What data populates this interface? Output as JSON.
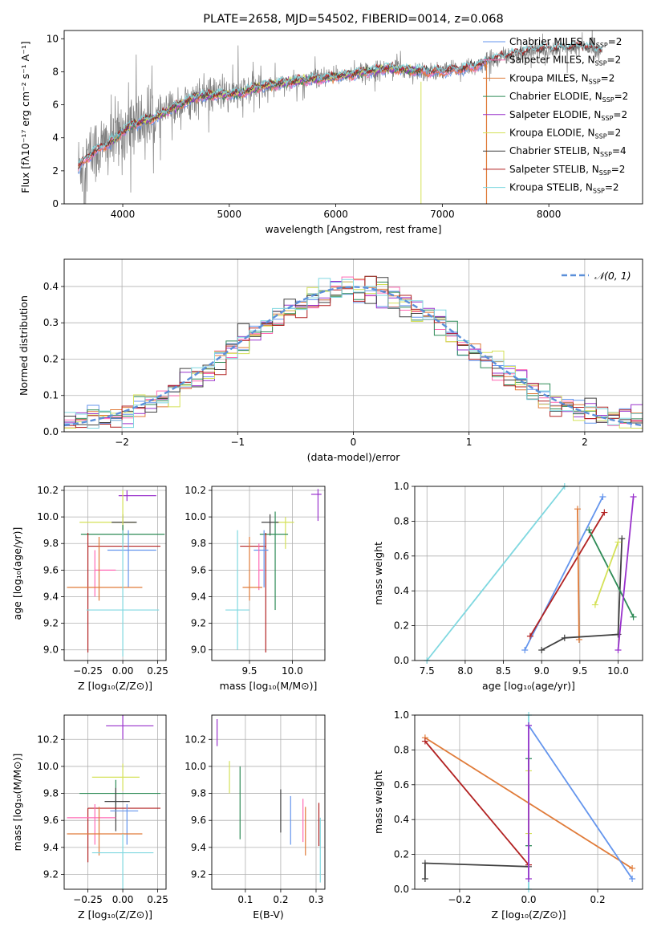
{
  "chart_data": [
    {
      "id": "spectrum",
      "type": "line",
      "title": "PLATE=2658, MJD=54502, FIBERID=0014, z=0.068",
      "xlabel": "wavelength [Angstrom, rest frame]",
      "ylabel": "Flux [fλ10⁻¹⁷ erg cm⁻² s⁻¹ A⁻¹]",
      "xlim": [
        3450,
        8880
      ],
      "ylim": [
        0,
        10.5
      ],
      "xticks": [
        4000,
        5000,
        6000,
        7000,
        8000
      ],
      "yticks": [
        0,
        2,
        4,
        6,
        8,
        10
      ],
      "legend_position": "top-right",
      "data_color": "#808080",
      "data_range": [
        3580,
        8500
      ],
      "continuum": {
        "x": [
          3580,
          3700,
          3800,
          3900,
          4000,
          4100,
          4200,
          4300,
          4500,
          4700,
          4900,
          5100,
          5300,
          5500,
          5700,
          5900,
          6100,
          6300,
          6500,
          6700,
          6900,
          7100,
          7300,
          7500,
          7700,
          7900,
          8100,
          8300,
          8500
        ],
        "y": [
          2.2,
          3.0,
          3.4,
          3.8,
          4.4,
          4.8,
          5.0,
          5.2,
          5.9,
          6.5,
          6.6,
          6.7,
          7.1,
          7.3,
          7.5,
          7.6,
          7.8,
          8.0,
          8.2,
          8.1,
          8.0,
          8.1,
          8.3,
          8.8,
          9.1,
          9.3,
          9.4,
          9.5,
          9.3
        ]
      },
      "series": [
        {
          "name": "Chabrier MILES, N_SSP=2",
          "color": "#6495ed",
          "range": [
            3580,
            7420
          ]
        },
        {
          "name": "Salpeter MILES, N_SSP=2",
          "color": "#ff69b4",
          "range": [
            3580,
            7420
          ]
        },
        {
          "name": "Kroupa MILES, N_SSP=2",
          "color": "#e07b39",
          "range": [
            3580,
            7420
          ]
        },
        {
          "name": "Chabrier ELODIE, N_SSP=2",
          "color": "#2e8b57",
          "range": [
            3900,
            6800
          ]
        },
        {
          "name": "Salpeter ELODIE, N_SSP=2",
          "color": "#9932cc",
          "range": [
            3900,
            6800
          ]
        },
        {
          "name": "Kroupa ELODIE, N_SSP=2",
          "color": "#d4e157",
          "range": [
            3900,
            6800
          ]
        },
        {
          "name": "Chabrier STELIB, N_SSP=4",
          "color": "#404040",
          "range": [
            3580,
            8500
          ]
        },
        {
          "name": "Salpeter STELIB, N_SSP=2",
          "color": "#b22222",
          "range": [
            3580,
            8500
          ]
        },
        {
          "name": "Kroupa STELIB, N_SSP=2",
          "color": "#80d8e0",
          "range": [
            3580,
            8500
          ]
        }
      ]
    },
    {
      "id": "residuals",
      "type": "histogram",
      "title": "",
      "xlabel": "(data-model)/error",
      "ylabel": "Normed distribution",
      "xlim": [
        -2.5,
        2.5
      ],
      "ylim": [
        0,
        0.475
      ],
      "xticks": [
        -2,
        -1,
        0,
        1,
        2
      ],
      "xtick_labels": [
        "−2",
        "−1",
        "0",
        "1",
        "2"
      ],
      "yticks": [
        0.0,
        0.1,
        0.2,
        0.3,
        0.4
      ],
      "ytick_labels": [
        "0.0",
        "0.1",
        "0.2",
        "0.3",
        "0.4"
      ],
      "bin_width": 0.1,
      "grid": true,
      "legend_position": "top-right",
      "reference": {
        "name": "𝒩(0, 1)",
        "color": "#5b8fd9",
        "mean": 0,
        "sigma": 1
      }
    },
    {
      "id": "age_vs_z",
      "type": "errorbar",
      "xlabel": "Z [log₁₀(Z/Z⊙)]",
      "ylabel": "age  [log₁₀(age/yr)]",
      "xlim": [
        -0.42,
        0.31
      ],
      "ylim": [
        8.92,
        10.23
      ],
      "xticks": [
        -0.25,
        0.0,
        0.25
      ],
      "xtick_labels": [
        "−0.25",
        "0.00",
        "0.25"
      ],
      "yticks": [
        9.0,
        9.2,
        9.4,
        9.6,
        9.8,
        10.0,
        10.2
      ],
      "ytick_labels": [
        "9.0",
        "9.2",
        "9.4",
        "9.6",
        "9.8",
        "10.0",
        "10.2"
      ],
      "grid": true,
      "points": [
        {
          "color": "#9932cc",
          "x": 0.03,
          "xerr": [
            0.06,
            0.21
          ],
          "y": 10.16,
          "yerr": [
            0.04,
            0.04
          ]
        },
        {
          "color": "#d4e157",
          "x": -0.05,
          "xerr": [
            0.26,
            0.14
          ],
          "y": 9.96,
          "yerr": [
            0.0,
            0.0
          ]
        },
        {
          "color": "#404040",
          "x": 0.0,
          "xerr": [
            0.08,
            0.1
          ],
          "y": 9.96,
          "yerr": [
            0.1,
            0.06
          ]
        },
        {
          "color": "#d4e157",
          "x": 0.0,
          "xerr": [
            0.0,
            0.0
          ],
          "y": 10.0,
          "yerr": [
            0.2,
            0.2
          ]
        },
        {
          "color": "#2e8b57",
          "x": -0.04,
          "xerr": [
            0.26,
            0.34
          ],
          "y": 9.87,
          "yerr": [
            0.0,
            0.0
          ]
        },
        {
          "color": "#2e8b57",
          "x": 0.0,
          "xerr": [
            0.0,
            0.0
          ],
          "y": 9.87,
          "yerr": [
            0.07,
            0.07
          ]
        },
        {
          "color": "#b22222",
          "x": -0.25,
          "xerr": [
            0.0,
            0.52
          ],
          "y": 9.78,
          "yerr": [
            0.8,
            0.1
          ]
        },
        {
          "color": "#6495ed",
          "x": 0.04,
          "xerr": [
            0.15,
            0.2
          ],
          "y": 9.75,
          "yerr": [
            0.28,
            0.15
          ]
        },
        {
          "color": "#ff69b4",
          "x": -0.2,
          "xerr": [
            0.0,
            0.15
          ],
          "y": 9.6,
          "yerr": [
            0.2,
            0.15
          ]
        },
        {
          "color": "#e07b39",
          "x": -0.17,
          "xerr": [
            0.23,
            0.31
          ],
          "y": 9.47,
          "yerr": [
            0.1,
            0.38
          ]
        },
        {
          "color": "#80d8e0",
          "x": 0.0,
          "xerr": [
            0.26,
            0.26
          ],
          "y": 9.3,
          "yerr": [
            0.35,
            0.6
          ]
        }
      ]
    },
    {
      "id": "age_vs_mass",
      "type": "errorbar",
      "xlabel": "mass [log₁₀(M/M⊙)]",
      "ylabel": "",
      "xlim": [
        9.06,
        10.38
      ],
      "ylim": [
        8.92,
        10.23
      ],
      "xticks": [
        9.5,
        10.0
      ],
      "xtick_labels": [
        "9.5",
        "10.0"
      ],
      "yticks": [
        9.0,
        9.2,
        9.4,
        9.6,
        9.8,
        10.0,
        10.2
      ],
      "ytick_labels": [
        "9.0",
        "9.2",
        "9.4",
        "9.6",
        "9.8",
        "10.0",
        "10.2"
      ],
      "grid": true,
      "points": [
        {
          "color": "#9932cc",
          "x": 10.3,
          "xerr": [
            0.08,
            0.04
          ],
          "y": 10.17,
          "yerr": [
            0.2,
            0.04
          ]
        },
        {
          "color": "#d4e157",
          "x": 9.92,
          "xerr": [
            0.12,
            0.1
          ],
          "y": 9.96,
          "yerr": [
            0.2,
            0.04
          ]
        },
        {
          "color": "#404040",
          "x": 9.74,
          "xerr": [
            0.1,
            0.1
          ],
          "y": 9.96,
          "yerr": [
            0.1,
            0.06
          ]
        },
        {
          "color": "#2e8b57",
          "x": 9.8,
          "xerr": [
            0.18,
            0.15
          ],
          "y": 9.87,
          "yerr": [
            0.57,
            0.17
          ]
        },
        {
          "color": "#b22222",
          "x": 9.69,
          "xerr": [
            0.3,
            0.0
          ],
          "y": 9.78,
          "yerr": [
            0.8,
            0.1
          ]
        },
        {
          "color": "#6495ed",
          "x": 9.67,
          "xerr": [
            0.12,
            0.05
          ],
          "y": 9.75,
          "yerr": [
            0.28,
            0.15
          ]
        },
        {
          "color": "#ff69b4",
          "x": 9.61,
          "xerr": [
            0.0,
            0.05
          ],
          "y": 9.6,
          "yerr": [
            0.15,
            0.2
          ]
        },
        {
          "color": "#e07b39",
          "x": 9.5,
          "xerr": [
            0.08,
            0.15
          ],
          "y": 9.47,
          "yerr": [
            0.1,
            0.38
          ]
        },
        {
          "color": "#80d8e0",
          "x": 9.36,
          "xerr": [
            0.14,
            0.14
          ],
          "y": 9.3,
          "yerr": [
            0.3,
            0.6
          ]
        }
      ]
    },
    {
      "id": "mass_weight_vs_age",
      "type": "line",
      "xlabel": "age  [log₁₀(age/yr)]",
      "ylabel": "mass weight",
      "xlim": [
        7.34,
        10.32
      ],
      "ylim": [
        0.0,
        1.0
      ],
      "xticks": [
        7.5,
        8.0,
        8.5,
        9.0,
        9.5,
        10.0
      ],
      "xtick_labels": [
        "7.5",
        "8.0",
        "8.5",
        "9.0",
        "9.5",
        "10.0"
      ],
      "yticks": [
        0.0,
        0.2,
        0.4,
        0.6,
        0.8,
        1.0
      ],
      "ytick_labels": [
        "0.0",
        "0.2",
        "0.4",
        "0.6",
        "0.8",
        "1.0"
      ],
      "grid": true,
      "lines": [
        {
          "color": "#80d8e0",
          "x": [
            7.5,
            9.3
          ],
          "y": [
            0.0,
            1.0
          ]
        },
        {
          "color": "#6495ed",
          "x": [
            8.78,
            9.8
          ],
          "y": [
            0.06,
            0.94
          ]
        },
        {
          "color": "#b22222",
          "x": [
            8.85,
            9.82
          ],
          "y": [
            0.14,
            0.85
          ]
        },
        {
          "color": "#e07b39",
          "x": [
            9.47,
            9.49
          ],
          "y": [
            0.87,
            0.12
          ]
        },
        {
          "color": "#404040",
          "x": [
            9.0,
            9.3,
            10.0,
            10.05
          ],
          "y": [
            0.06,
            0.13,
            0.15,
            0.7
          ]
        },
        {
          "color": "#2e8b57",
          "x": [
            9.62,
            10.2
          ],
          "y": [
            0.75,
            0.25
          ]
        },
        {
          "color": "#d4e157",
          "x": [
            9.7,
            10.0
          ],
          "y": [
            0.32,
            0.68
          ]
        },
        {
          "color": "#9932cc",
          "x": [
            10.0,
            10.2
          ],
          "y": [
            0.06,
            0.94
          ]
        }
      ]
    },
    {
      "id": "mass_vs_z",
      "type": "errorbar",
      "xlabel": "Z [log₁₀(Z/Z⊙)]",
      "ylabel": "mass [log₁₀(M/M⊙)]",
      "xlim": [
        -0.42,
        0.31
      ],
      "ylim": [
        9.09,
        10.38
      ],
      "xticks": [
        -0.25,
        0.0,
        0.25
      ],
      "xtick_labels": [
        "−0.25",
        "0.00",
        "0.25"
      ],
      "yticks": [
        9.2,
        9.4,
        9.6,
        9.8,
        10.0,
        10.2
      ],
      "ytick_labels": [
        "9.2",
        "9.4",
        "9.6",
        "9.8",
        "10.0",
        "10.2"
      ],
      "grid": true,
      "points": [
        {
          "color": "#9932cc",
          "x": 0.0,
          "xerr": [
            0.12,
            0.22
          ],
          "y": 10.3,
          "yerr": [
            0.1,
            0.08
          ]
        },
        {
          "color": "#d4e157",
          "x": 0.0,
          "xerr": [
            0.22,
            0.12
          ],
          "y": 9.92,
          "yerr": [
            0.1,
            0.1
          ]
        },
        {
          "color": "#2e8b57",
          "x": -0.05,
          "xerr": [
            0.26,
            0.32
          ],
          "y": 9.8,
          "yerr": [
            0.12,
            0.1
          ]
        },
        {
          "color": "#404040",
          "x": -0.05,
          "xerr": [
            0.08,
            0.1
          ],
          "y": 9.74,
          "yerr": [
            0.22,
            0.1
          ]
        },
        {
          "color": "#b22222",
          "x": -0.25,
          "xerr": [
            0.0,
            0.52
          ],
          "y": 9.69,
          "yerr": [
            0.4,
            0.0
          ]
        },
        {
          "color": "#6495ed",
          "x": 0.03,
          "xerr": [
            0.12,
            0.08
          ],
          "y": 9.67,
          "yerr": [
            0.25,
            0.05
          ]
        },
        {
          "color": "#ff69b4",
          "x": -0.2,
          "xerr": [
            0.2,
            0.15
          ],
          "y": 9.62,
          "yerr": [
            0.2,
            0.1
          ]
        },
        {
          "color": "#e07b39",
          "x": -0.17,
          "xerr": [
            0.23,
            0.31
          ],
          "y": 9.5,
          "yerr": [
            0.16,
            0.2
          ]
        },
        {
          "color": "#80d8e0",
          "x": 0.0,
          "xerr": [
            0.22,
            0.22
          ],
          "y": 9.36,
          "yerr": [
            0.27,
            0.14
          ]
        }
      ]
    },
    {
      "id": "mass_vs_ebv",
      "type": "errorbar",
      "xlabel": "E(B-V)",
      "ylabel": "",
      "xlim": [
        0.005,
        0.325
      ],
      "ylim": [
        9.09,
        10.38
      ],
      "xticks": [
        0.1,
        0.2,
        0.3
      ],
      "xtick_labels": [
        "0.1",
        "0.2",
        "0.3"
      ],
      "yticks": [
        9.2,
        9.4,
        9.6,
        9.8,
        10.0,
        10.2
      ],
      "ytick_labels": [
        "9.2",
        "9.4",
        "9.6",
        "9.8",
        "10.0",
        "10.2"
      ],
      "grid": true,
      "points": [
        {
          "color": "#9932cc",
          "x": 0.02,
          "xerr": [
            0.0,
            0.0
          ],
          "y": 10.25,
          "yerr": [
            0.1,
            0.1
          ]
        },
        {
          "color": "#d4e157",
          "x": 0.055,
          "xerr": [
            0.0,
            0.0
          ],
          "y": 9.92,
          "yerr": [
            0.12,
            0.12
          ]
        },
        {
          "color": "#2e8b57",
          "x": 0.085,
          "xerr": [
            0.0,
            0.0
          ],
          "y": 9.73,
          "yerr": [
            0.27,
            0.27
          ]
        },
        {
          "color": "#404040",
          "x": 0.2,
          "xerr": [
            0.0,
            0.0
          ],
          "y": 9.67,
          "yerr": [
            0.16,
            0.16
          ]
        },
        {
          "color": "#6495ed",
          "x": 0.228,
          "xerr": [
            0.0,
            0.0
          ],
          "y": 9.6,
          "yerr": [
            0.18,
            0.18
          ]
        },
        {
          "color": "#ff69b4",
          "x": 0.263,
          "xerr": [
            0.0,
            0.0
          ],
          "y": 9.6,
          "yerr": [
            0.16,
            0.16
          ]
        },
        {
          "color": "#e07b39",
          "x": 0.27,
          "xerr": [
            0.0,
            0.0
          ],
          "y": 9.52,
          "yerr": [
            0.18,
            0.18
          ]
        },
        {
          "color": "#b22222",
          "x": 0.308,
          "xerr": [
            0.0,
            0.0
          ],
          "y": 9.57,
          "yerr": [
            0.16,
            0.16
          ]
        },
        {
          "color": "#80d8e0",
          "x": 0.312,
          "xerr": [
            0.0,
            0.0
          ],
          "y": 9.38,
          "yerr": [
            0.24,
            0.24
          ]
        }
      ]
    },
    {
      "id": "mass_weight_vs_z",
      "type": "line",
      "xlabel": "Z [log₁₀(Z/Z⊙)]",
      "ylabel": "mass weight",
      "xlim": [
        -0.33,
        0.33
      ],
      "ylim": [
        0.0,
        1.0
      ],
      "xticks": [
        -0.2,
        0.0,
        0.2
      ],
      "xtick_labels": [
        "−0.2",
        "0.0",
        "0.2"
      ],
      "yticks": [
        0.0,
        0.2,
        0.4,
        0.6,
        0.8,
        1.0
      ],
      "ytick_labels": [
        "0.0",
        "0.2",
        "0.4",
        "0.6",
        "0.8",
        "1.0"
      ],
      "grid": true,
      "lines": [
        {
          "color": "#e07b39",
          "x": [
            -0.3,
            0.3
          ],
          "y": [
            0.87,
            0.12
          ]
        },
        {
          "color": "#b22222",
          "x": [
            -0.3,
            0.0
          ],
          "y": [
            0.85,
            0.14
          ]
        },
        {
          "color": "#6495ed",
          "x": [
            0.0,
            0.3
          ],
          "y": [
            0.94,
            0.06
          ]
        },
        {
          "color": "#404040",
          "x": [
            -0.3,
            -0.3,
            0.0
          ],
          "y": [
            0.06,
            0.15,
            0.13
          ]
        },
        {
          "color": "#80d8e0",
          "x": [
            0.0,
            0.0
          ],
          "y": [
            0.0,
            1.0
          ]
        },
        {
          "color": "#2e8b57",
          "x": [
            0.0,
            0.0
          ],
          "y": [
            0.25,
            0.75
          ]
        },
        {
          "color": "#d4e157",
          "x": [
            0.0,
            0.0
          ],
          "y": [
            0.32,
            0.68
          ]
        },
        {
          "color": "#9932cc",
          "x": [
            0.0,
            0.0
          ],
          "y": [
            0.06,
            0.94
          ]
        }
      ]
    }
  ]
}
